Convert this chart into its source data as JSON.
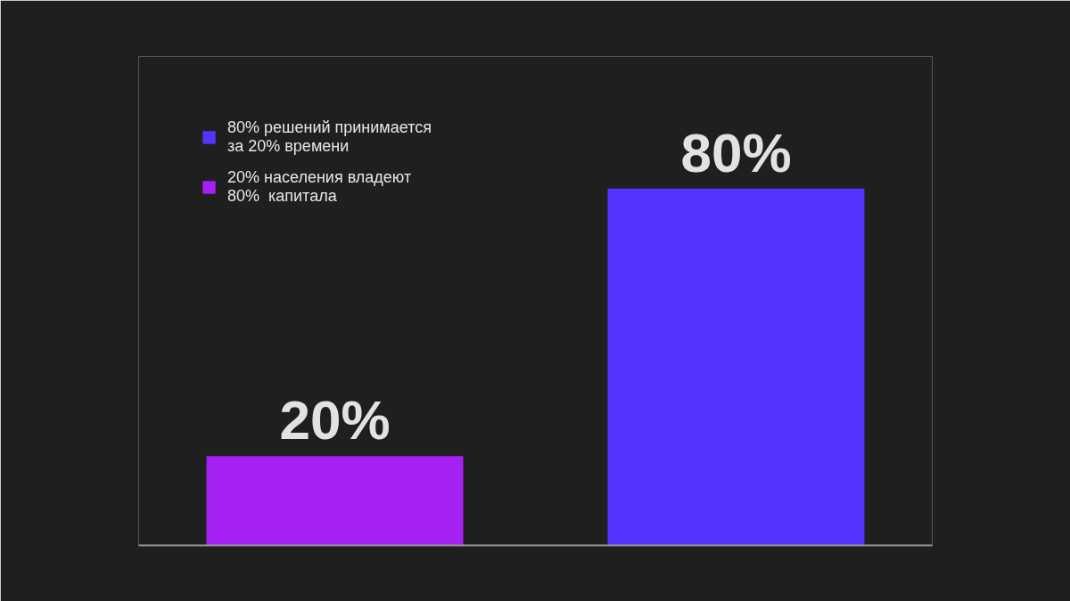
{
  "chart_data": {
    "type": "bar",
    "stacked": true,
    "categories": [
      null,
      null
    ],
    "series": [
      {
        "name": "80% решений принимается за 20% времени",
        "color": "#5533ff",
        "values": [
          null,
          80
        ],
        "value_labels": [
          null,
          "80%"
        ]
      },
      {
        "name": "20% населения владеют 80%  капитала",
        "color": "#a321f2",
        "values": [
          20,
          null
        ],
        "value_labels": [
          "20%",
          null
        ]
      }
    ],
    "legend": "top left",
    "grid": false
  }
}
